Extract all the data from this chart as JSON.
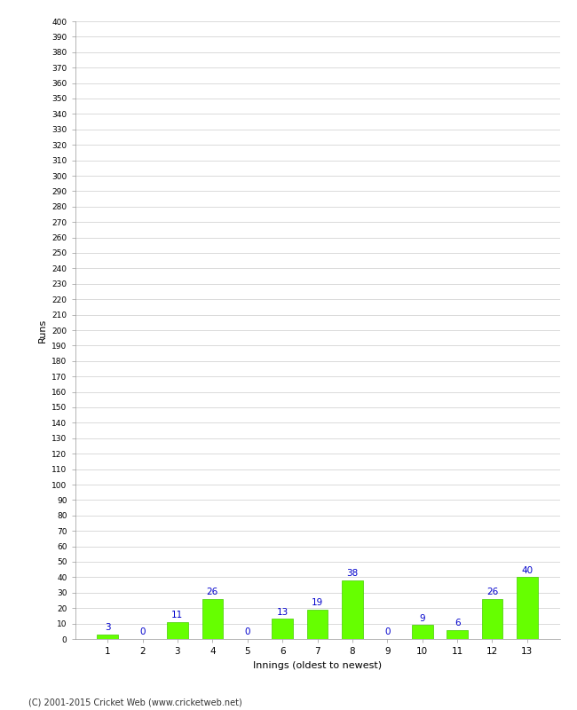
{
  "xlabel": "Innings (oldest to newest)",
  "ylabel": "Runs",
  "categories": [
    1,
    2,
    3,
    4,
    5,
    6,
    7,
    8,
    9,
    10,
    11,
    12,
    13
  ],
  "values": [
    3,
    0,
    11,
    26,
    0,
    13,
    19,
    38,
    0,
    9,
    6,
    26,
    40
  ],
  "bar_color": "#66FF00",
  "bar_edge_color": "#44CC00",
  "label_color": "#0000CC",
  "ylim": [
    0,
    400
  ],
  "background_color": "#FFFFFF",
  "grid_color": "#CCCCCC",
  "footer": "(C) 2001-2015 Cricket Web (www.cricketweb.net)"
}
